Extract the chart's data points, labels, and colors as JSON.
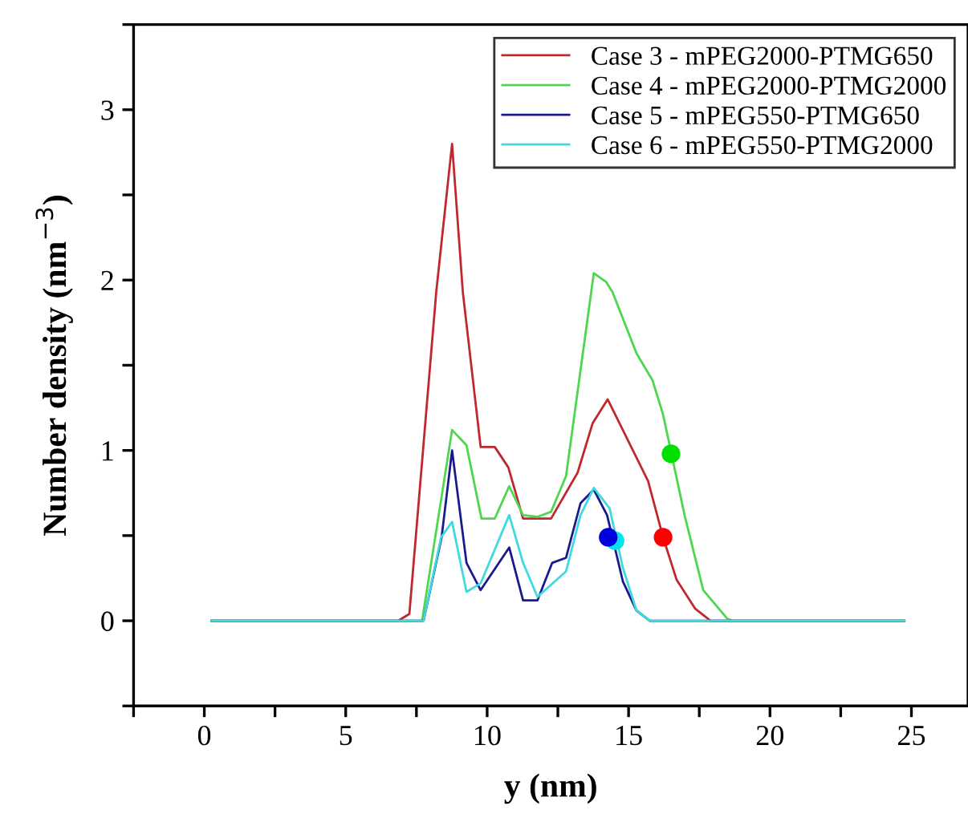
{
  "chart_data": {
    "type": "line",
    "xlabel": "y (nm)",
    "ylabel": "Number density (nm$^{−3}$)",
    "xlim": [
      -2.5,
      27
    ],
    "ylim": [
      -0.5,
      3.5
    ],
    "xticks": [
      {
        "value": -2.5,
        "label": null
      },
      0,
      {
        "value": 2.5,
        "label": null
      },
      5,
      {
        "value": 7.5,
        "label": null
      },
      10,
      {
        "value": 12.5,
        "label": null
      },
      15,
      {
        "value": 17.5,
        "label": null
      },
      20,
      {
        "value": 22.5,
        "label": null
      },
      25
    ],
    "yticks": [
      {
        "value": -0.5,
        "label": null
      },
      0,
      {
        "value": 0.5,
        "label": null
      },
      1,
      {
        "value": 1.5,
        "label": null
      },
      2,
      {
        "value": 2.5,
        "label": null
      },
      3,
      {
        "value": 3.5,
        "label": null
      }
    ],
    "grid": false,
    "legend": "top right",
    "marker": "none",
    "line_style": "solid",
    "series": [
      {
        "name": "Case 3 - mPEG2000-PTMG650",
        "color": "#c0282d",
        "x": [
          0.25,
          6.86,
          7.25,
          8.2,
          8.76,
          9.14,
          9.77,
          10.27,
          10.75,
          11.27,
          12.26,
          13.2,
          13.73,
          14.26,
          15.69,
          16.22,
          16.7,
          17.36,
          17.9,
          24.75
        ],
        "values": [
          0,
          0,
          0.04,
          1.93,
          2.8,
          1.93,
          1.02,
          1.02,
          0.9,
          0.6,
          0.6,
          0.87,
          1.16,
          1.3,
          0.82,
          0.49,
          0.24,
          0.07,
          0,
          0
        ]
      },
      {
        "name": "Case 4 - mPEG2000-PTMG2000",
        "color": "#4fd64f",
        "x": [
          0.25,
          7.7,
          8.76,
          9.27,
          9.8,
          10.27,
          10.78,
          11.27,
          11.78,
          12.26,
          12.79,
          13.77,
          14.2,
          14.43,
          15.28,
          15.85,
          16.22,
          16.98,
          17.64,
          18.5,
          18.7,
          24.75
        ],
        "values": [
          0,
          0,
          1.12,
          1.03,
          0.6,
          0.6,
          0.79,
          0.62,
          0.61,
          0.64,
          0.85,
          2.04,
          1.99,
          1.93,
          1.57,
          1.41,
          1.21,
          0.62,
          0.18,
          0.01,
          0,
          0
        ]
      },
      {
        "name": "Case 5 - mPEG550-PTMG650",
        "color": "#1a1a8c",
        "x": [
          0.25,
          7.75,
          8.39,
          8.76,
          9.27,
          9.77,
          10.78,
          11.27,
          11.78,
          12.3,
          12.79,
          13.3,
          13.77,
          14.24,
          14.8,
          15.28,
          15.75,
          24.75
        ],
        "values": [
          0,
          0,
          0.49,
          1.0,
          0.34,
          0.18,
          0.43,
          0.12,
          0.12,
          0.34,
          0.37,
          0.69,
          0.77,
          0.62,
          0.23,
          0.06,
          0,
          0
        ]
      },
      {
        "name": "Case 6 - mPEG550-PTMG2000",
        "color": "#3fd9e0",
        "x": [
          0.25,
          7.75,
          8.37,
          8.76,
          9.27,
          9.77,
          10.78,
          11.27,
          11.78,
          12.79,
          13.3,
          13.77,
          14.33,
          14.8,
          15.28,
          15.75,
          24.75
        ],
        "values": [
          0,
          0,
          0.49,
          0.58,
          0.17,
          0.22,
          0.62,
          0.34,
          0.14,
          0.29,
          0.62,
          0.78,
          0.66,
          0.31,
          0.06,
          0,
          0
        ]
      },
      {
        "type": "scatter",
        "marker": "circle",
        "color": "#ff0000",
        "x": [
          16.22
        ],
        "values": [
          0.49
        ]
      },
      {
        "type": "scatter",
        "marker": "circle",
        "color": "#00e000",
        "x": [
          16.5
        ],
        "values": [
          0.98
        ]
      },
      {
        "type": "scatter",
        "marker": "circle",
        "color": "#0000dd",
        "x": [
          14.28
        ],
        "values": [
          0.49
        ]
      },
      {
        "type": "scatter",
        "marker": "circle",
        "color": "#00e5ee",
        "x": [
          14.52
        ],
        "values": [
          0.47
        ]
      }
    ]
  }
}
